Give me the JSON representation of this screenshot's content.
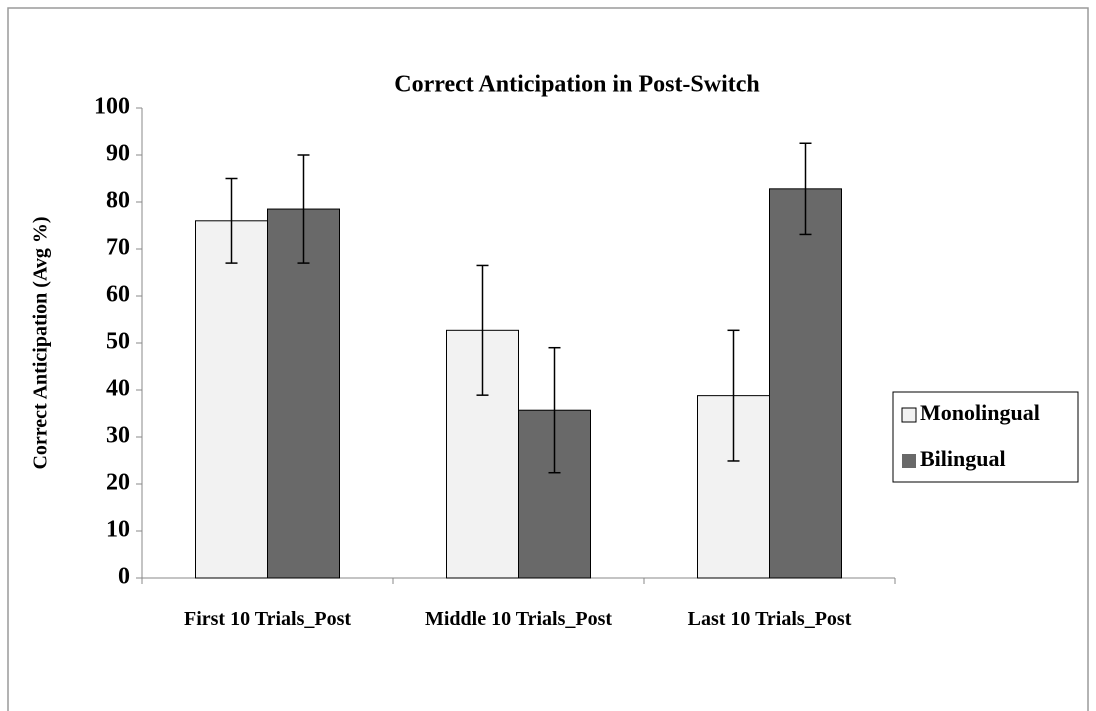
{
  "chart_data": {
    "type": "bar",
    "title": "Correct Anticipation in Post-Switch",
    "y_label": "Correct Anticipation (Avg %)",
    "categories": [
      "First 10 Trials_Post",
      "Middle 10 Trials_Post",
      "Last 10 Trials_Post"
    ],
    "series": [
      {
        "name": "Monolingual",
        "color": "#f2f2f2",
        "values": [
          76,
          52.7,
          38.8
        ],
        "errors": [
          9,
          13.8,
          13.9
        ]
      },
      {
        "name": "Bilingual",
        "color": "#696969",
        "values": [
          78.5,
          35.7,
          82.8
        ],
        "errors": [
          11.5,
          13.3,
          9.7
        ]
      }
    ],
    "ylim": [
      0,
      100
    ],
    "yticks": [
      0,
      10,
      20,
      30,
      40,
      50,
      60,
      70,
      80,
      90,
      100
    ],
    "legend": "right"
  }
}
